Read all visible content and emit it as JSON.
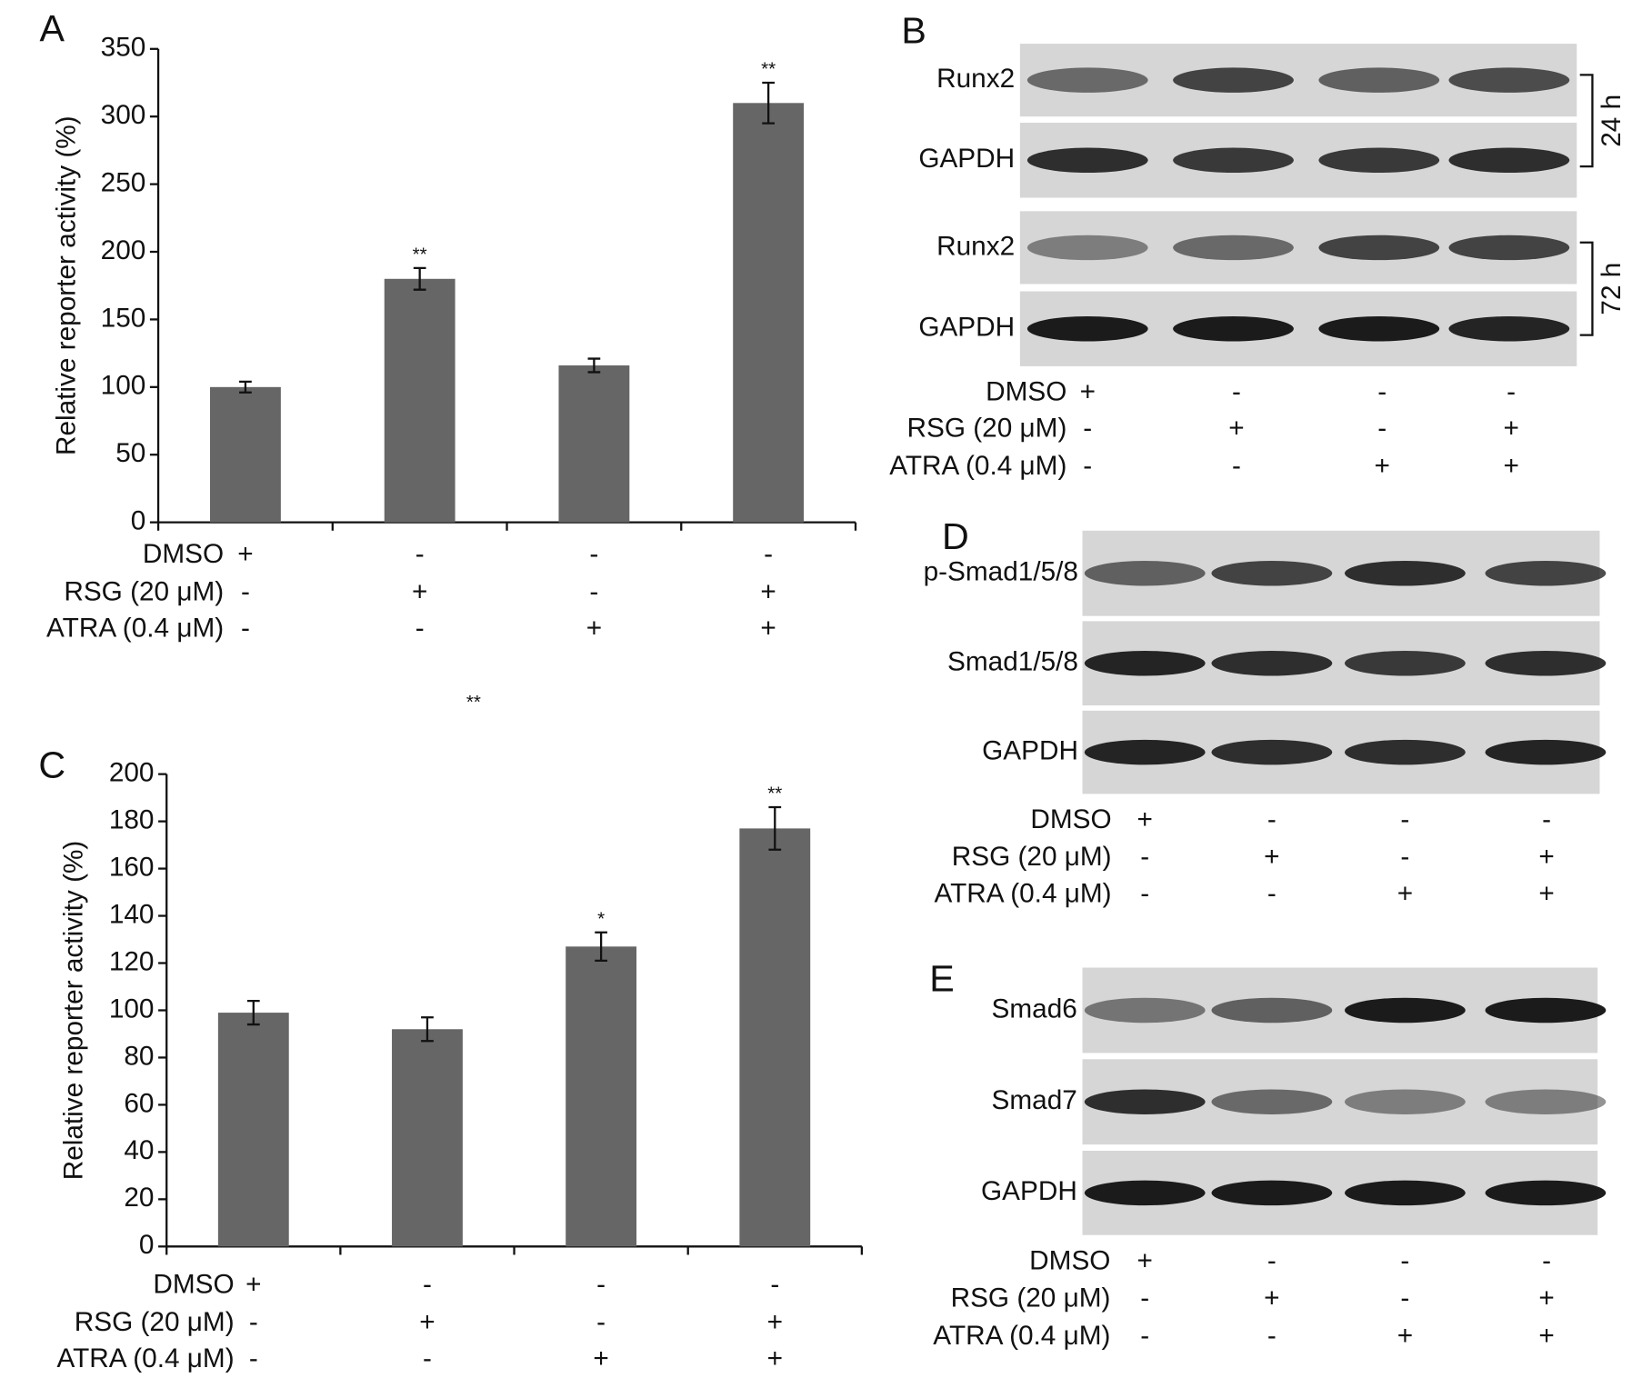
{
  "chart_data": [
    {
      "type": "bar",
      "panel": "A",
      "ylabel": "Relative reporter activity (%)",
      "categories": [
        null,
        null,
        null,
        null
      ],
      "values": [
        100,
        180,
        116,
        310
      ],
      "errors": [
        4,
        8,
        5,
        15
      ],
      "annotations": [
        null,
        "**",
        null,
        "**"
      ],
      "color": "#666666",
      "ylim": [
        0,
        350
      ],
      "yticks": [
        0,
        50,
        100,
        150,
        200,
        250,
        300,
        350
      ]
    },
    {
      "type": "bar",
      "panel": "C",
      "ylabel": "Relative reporter activity (%)",
      "categories": [
        null,
        null,
        null,
        null
      ],
      "values": [
        99,
        92,
        127,
        177
      ],
      "errors": [
        5,
        5,
        6,
        9
      ],
      "annotations": [
        null,
        null,
        "*",
        "**"
      ],
      "color": "#666666",
      "ylim": [
        0,
        200
      ],
      "yticks": [
        0,
        20,
        40,
        60,
        80,
        100,
        120,
        140,
        160,
        180,
        200
      ]
    }
  ],
  "floating_annotation": "**",
  "treatments": [
    {
      "label": "DMSO",
      "signs": [
        "+",
        "-",
        "-",
        "-"
      ]
    },
    {
      "label": "RSG (20 μM)",
      "signs": [
        "-",
        "+",
        "-",
        "+"
      ]
    },
    {
      "label": "ATRA (0.4 μM)",
      "signs": [
        "-",
        "-",
        "+",
        "+"
      ]
    }
  ],
  "blots": [
    {
      "panel": "B",
      "rows": [
        "Runx2",
        "GAPDH",
        "Runx2",
        "GAPDH"
      ],
      "times": [
        "24 h",
        "72 h"
      ]
    },
    {
      "panel": "D",
      "rows": [
        "p-Smad1/5/8",
        "Smad1/5/8",
        "GAPDH"
      ]
    },
    {
      "panel": "E",
      "rows": [
        "Smad6",
        "Smad7",
        "GAPDH"
      ]
    }
  ]
}
